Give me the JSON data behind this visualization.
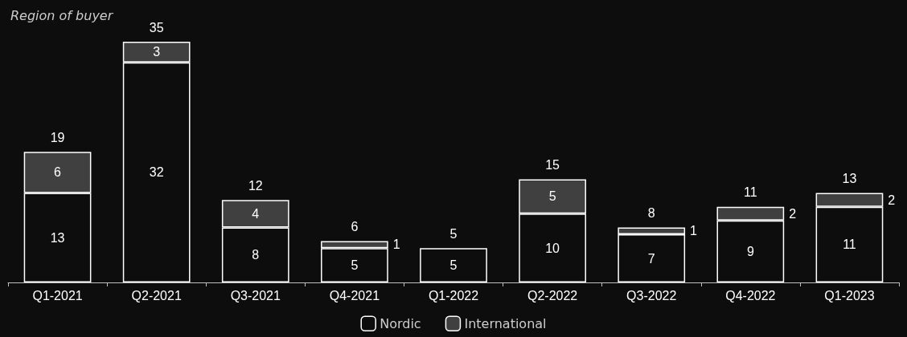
{
  "chart_data": {
    "type": "bar",
    "title": "Region of buyer",
    "stacked": true,
    "data_labels": true,
    "legend": "bottom",
    "tick_labels": "x",
    "categories": [
      "Q1-2021",
      "Q2-2021",
      "Q3-2021",
      "Q4-2021",
      "Q1-2022",
      "Q2-2022",
      "Q3-2022",
      "Q4-2022",
      "Q1-2023"
    ],
    "series": [
      {
        "name": "Nordic",
        "color": "#0d0d0d",
        "values": [
          13,
          32,
          8,
          5,
          5,
          10,
          7,
          9,
          11
        ]
      },
      {
        "name": "International",
        "color": "#404040",
        "values": [
          6,
          3,
          4,
          1,
          null,
          5,
          1,
          2,
          2
        ]
      }
    ],
    "totals": [
      "19",
      "35",
      "12",
      "6",
      "5",
      "15",
      "8",
      "11",
      "13"
    ]
  }
}
